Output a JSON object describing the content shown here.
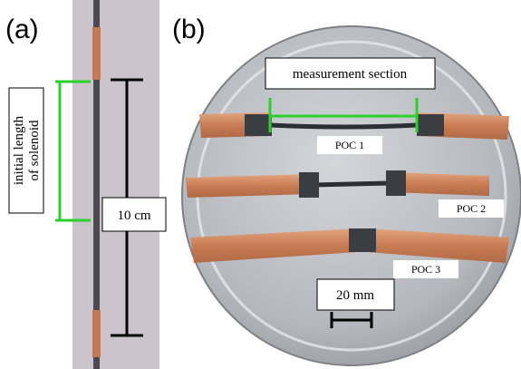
{
  "panel_a": {
    "label": "(a)",
    "solenoid_label": [
      "initial length",
      "of solenoid"
    ],
    "scale_label": "10 cm"
  },
  "panel_b": {
    "label": "(b)",
    "section_label": "measurement section",
    "samples": [
      "POC 1",
      "POC 2",
      "POC 3"
    ],
    "scale_label": "20 mm"
  }
}
